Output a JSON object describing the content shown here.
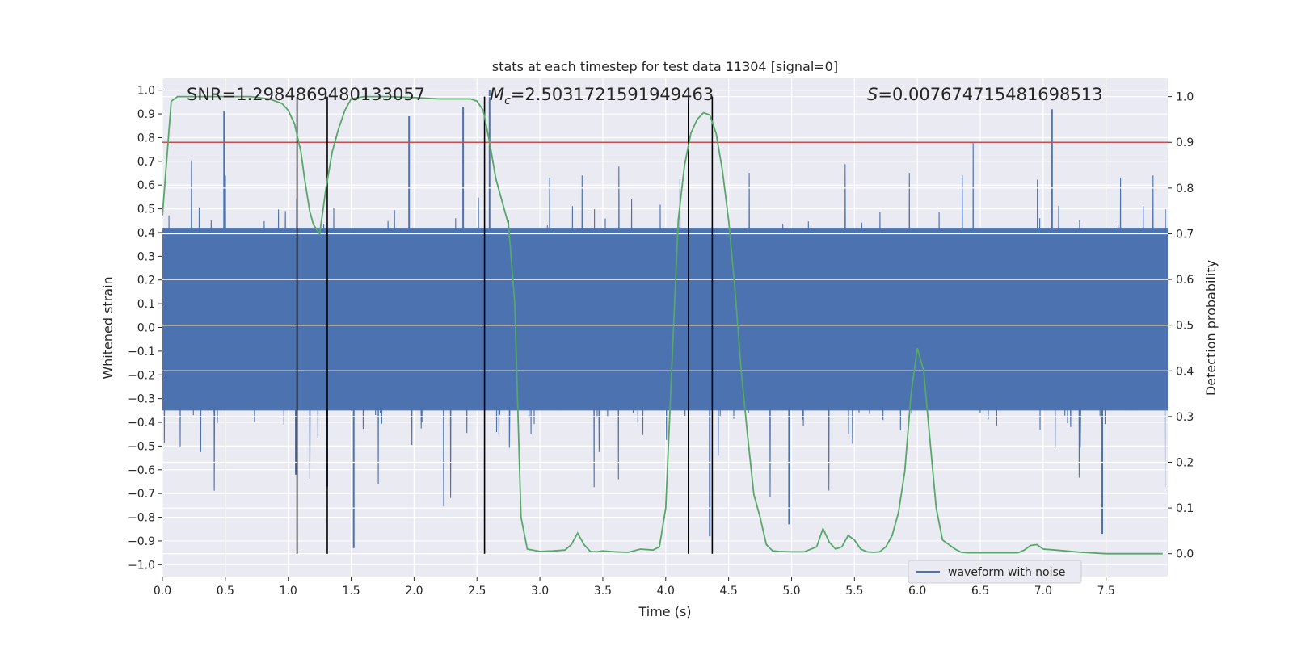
{
  "chart_data": {
    "type": "line",
    "title": "stats at each timestep for test data 11304 [signal=0]",
    "xlabel": "Time (s)",
    "ylabel": "Whitened strain",
    "y2label": "Detection probability",
    "xlim": [
      0.0,
      7.99
    ],
    "ylim": [
      -1.05,
      1.05
    ],
    "y2lim": [
      -0.05,
      1.04
    ],
    "xticks": [
      0.0,
      0.5,
      1.0,
      1.5,
      2.0,
      2.5,
      3.0,
      3.5,
      4.0,
      4.5,
      5.0,
      5.5,
      6.0,
      6.5,
      7.0,
      7.5
    ],
    "xtick_labels": [
      "0.0",
      "0.5",
      "1.0",
      "1.5",
      "2.0",
      "2.5",
      "3.0",
      "3.5",
      "4.0",
      "4.5",
      "5.0",
      "5.5",
      "6.0",
      "6.5",
      "7.0",
      "7.5"
    ],
    "yticks": [
      -1.0,
      -0.9,
      -0.8,
      -0.7,
      -0.6,
      -0.5,
      -0.4,
      -0.3,
      -0.2,
      -0.1,
      0.0,
      0.1,
      0.2,
      0.3,
      0.4,
      0.5,
      0.6,
      0.7,
      0.8,
      0.9,
      1.0
    ],
    "ytick_labels": [
      "−1.0",
      "−0.9",
      "−0.8",
      "−0.7",
      "−0.6",
      "−0.5",
      "−0.4",
      "−0.3",
      "−0.2",
      "−0.1",
      "0.0",
      "0.1",
      "0.2",
      "0.3",
      "0.4",
      "0.5",
      "0.6",
      "0.7",
      "0.8",
      "0.9",
      "1.0"
    ],
    "y2ticks": [
      0.0,
      0.1,
      0.2,
      0.3,
      0.4,
      0.5,
      0.6,
      0.7,
      0.8,
      0.9,
      1.0
    ],
    "y2tick_labels": [
      "0.0",
      "0.1",
      "0.2",
      "0.3",
      "0.4",
      "0.5",
      "0.6",
      "0.7",
      "0.8",
      "0.9",
      "1.0"
    ],
    "series": [
      {
        "name": "waveform with noise",
        "axis": "left",
        "color": "#4c72b0",
        "description": "dense noise envelope",
        "core_band": [
          -0.35,
          0.42
        ],
        "extremes": [
          -0.95,
          1.0
        ],
        "notable_spikes": [
          {
            "x": 0.49,
            "y": 0.91
          },
          {
            "x": 1.06,
            "y": -0.62
          },
          {
            "x": 1.31,
            "y": -0.67
          },
          {
            "x": 1.52,
            "y": -0.93
          },
          {
            "x": 1.96,
            "y": 0.89
          },
          {
            "x": 2.39,
            "y": 0.93
          },
          {
            "x": 2.6,
            "y": 1.0
          },
          {
            "x": 4.35,
            "y": -0.88
          },
          {
            "x": 4.98,
            "y": -0.83
          },
          {
            "x": 7.07,
            "y": 0.92
          },
          {
            "x": 7.47,
            "y": -0.87
          }
        ]
      },
      {
        "name": "detection probability",
        "axis": "right",
        "color": "#55a868",
        "x": [
          0.0,
          0.07,
          0.12,
          0.2,
          0.3,
          0.5,
          0.7,
          0.85,
          0.95,
          1.0,
          1.05,
          1.1,
          1.13,
          1.17,
          1.2,
          1.25,
          1.3,
          1.35,
          1.4,
          1.45,
          1.5,
          1.6,
          1.8,
          2.0,
          2.2,
          2.35,
          2.45,
          2.5,
          2.55,
          2.6,
          2.65,
          2.75,
          2.8,
          2.85,
          2.9,
          3.0,
          3.1,
          3.2,
          3.25,
          3.3,
          3.35,
          3.4,
          3.45,
          3.5,
          3.55,
          3.6,
          3.7,
          3.8,
          3.9,
          3.95,
          4.0,
          4.05,
          4.1,
          4.15,
          4.2,
          4.25,
          4.3,
          4.35,
          4.4,
          4.45,
          4.5,
          4.55,
          4.6,
          4.65,
          4.7,
          4.75,
          4.8,
          4.85,
          4.9,
          5.0,
          5.1,
          5.2,
          5.25,
          5.3,
          5.35,
          5.4,
          5.45,
          5.5,
          5.55,
          5.6,
          5.65,
          5.7,
          5.75,
          5.8,
          5.85,
          5.9,
          5.95,
          6.0,
          6.05,
          6.1,
          6.15,
          6.2,
          6.3,
          6.35,
          6.4,
          6.6,
          6.8,
          6.85,
          6.9,
          6.95,
          7.0,
          7.1,
          7.3,
          7.5,
          7.7,
          7.95
        ],
        "y": [
          0.74,
          0.99,
          1.0,
          1.0,
          1.0,
          1.0,
          1.0,
          0.995,
          0.985,
          0.97,
          0.94,
          0.88,
          0.82,
          0.75,
          0.72,
          0.7,
          0.8,
          0.88,
          0.93,
          0.97,
          0.995,
          1.0,
          1.0,
          0.998,
          0.995,
          0.995,
          0.995,
          0.99,
          0.97,
          0.9,
          0.82,
          0.72,
          0.55,
          0.08,
          0.01,
          0.005,
          0.006,
          0.008,
          0.02,
          0.045,
          0.02,
          0.005,
          0.004,
          0.006,
          0.005,
          0.004,
          0.003,
          0.01,
          0.008,
          0.015,
          0.1,
          0.42,
          0.73,
          0.85,
          0.92,
          0.95,
          0.965,
          0.96,
          0.92,
          0.84,
          0.73,
          0.58,
          0.4,
          0.26,
          0.13,
          0.08,
          0.02,
          0.006,
          0.005,
          0.004,
          0.004,
          0.015,
          0.055,
          0.025,
          0.01,
          0.015,
          0.04,
          0.03,
          0.01,
          0.004,
          0.003,
          0.004,
          0.015,
          0.04,
          0.09,
          0.18,
          0.35,
          0.45,
          0.4,
          0.25,
          0.1,
          0.03,
          0.01,
          0.003,
          0.002,
          0.002,
          0.002,
          0.008,
          0.018,
          0.02,
          0.01,
          0.008,
          0.003,
          0.0,
          0.0,
          0.0
        ]
      }
    ],
    "threshold_line": {
      "axis": "right",
      "value": 0.9,
      "color": "#c44e52"
    },
    "vlines": [
      1.07,
      1.31,
      2.56,
      4.18,
      4.37
    ],
    "vline_color": "#000000",
    "annotations": {
      "snr": "SNR=1.2984869480133057",
      "mc_symbol": "M",
      "mc_sub": "c",
      "mc_value": "=2.5031721591949463",
      "s_symbol": "S",
      "s_value": "=0.007674715481698513"
    },
    "legend": {
      "label": "waveform with noise",
      "placement": "lower-right"
    },
    "background_color": "#eaeaf2",
    "grid": true
  }
}
